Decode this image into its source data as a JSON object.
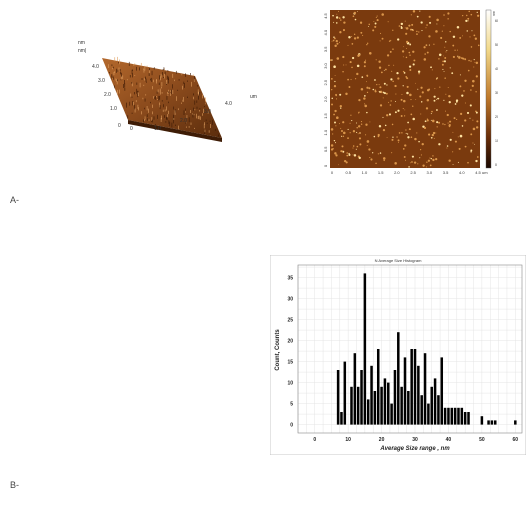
{
  "panels": {
    "a_label": "A-",
    "b_label": "B-"
  },
  "afm3d": {
    "unit_top": "nm",
    "unit_top2": "nm|",
    "y_ticks": [
      "4.0",
      "3.0",
      "2.0",
      "1.0",
      "0"
    ],
    "x_ticks": [
      "0",
      "1.0",
      "2.0",
      "3.0",
      "4.0"
    ],
    "x_unit": "um",
    "surface_color": "#8a4a1c"
  },
  "afm2d": {
    "x_ticks": [
      "0",
      "0.5",
      "1.0",
      "1.5",
      "2.0",
      "2.5",
      "3.0",
      "3.5",
      "4.0",
      "4.5"
    ],
    "x_unit": "um",
    "y_ticks": [
      "0",
      "0.5",
      "1.0",
      "1.5",
      "2.0",
      "2.5",
      "3.0",
      "3.5",
      "4.0",
      "4.5"
    ],
    "bar_unit": "nm",
    "bar_ticks": [
      "60",
      "50",
      "40",
      "30",
      "20",
      "10",
      "0"
    ],
    "background_color": "#7a3a0e"
  },
  "chart_data": {
    "type": "bar",
    "title": "N   Average Size Histogram",
    "xlabel": "Average Size range , nm",
    "ylabel": "Count, Counts",
    "xlim": [
      -5,
      62
    ],
    "ylim": [
      -2,
      38
    ],
    "x_ticks": [
      0,
      10,
      20,
      30,
      40,
      50,
      60
    ],
    "y_ticks": [
      0,
      5,
      10,
      15,
      20,
      25,
      30,
      35
    ],
    "grid": true,
    "bar_color": "#000000",
    "x": [
      7,
      8,
      9,
      11,
      12,
      13,
      14,
      15,
      16,
      17,
      18,
      19,
      20,
      21,
      22,
      23,
      24,
      25,
      26,
      27,
      28,
      29,
      30,
      31,
      32,
      33,
      34,
      35,
      36,
      37,
      38,
      39,
      40,
      41,
      42,
      43,
      44,
      45,
      46,
      50,
      52,
      53,
      54,
      60
    ],
    "values": [
      13,
      3,
      15,
      9,
      17,
      9,
      13,
      36,
      6,
      14,
      8,
      18,
      9,
      11,
      10,
      5,
      13,
      22,
      9,
      16,
      8,
      18,
      18,
      14,
      7,
      17,
      5,
      9,
      11,
      7,
      16,
      4,
      4,
      4,
      4,
      4,
      4,
      3,
      3,
      2,
      1,
      1,
      1,
      1
    ]
  }
}
